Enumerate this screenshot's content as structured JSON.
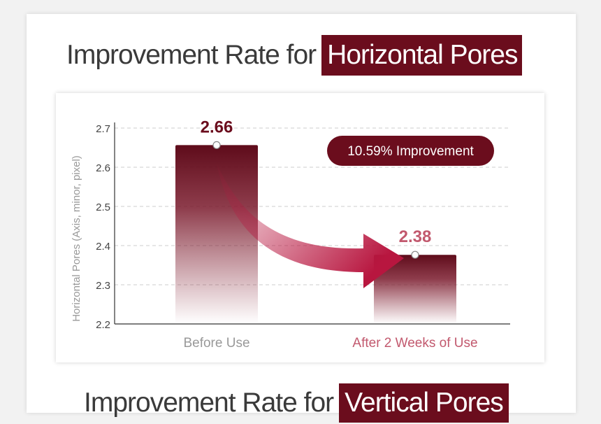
{
  "header": {
    "title_prefix": "Improvement Rate for",
    "title_highlight": "Horizontal Pores"
  },
  "next_section": {
    "title_prefix": "Improvement Rate for",
    "title_highlight": "Vertical Pores"
  },
  "colors": {
    "accent": "#6b0d1d",
    "accent_light": "#c2596e",
    "arrow": "#b8163f",
    "grid": "#cccccc",
    "axis": "#333333",
    "muted_text": "#999999"
  },
  "chart_data": {
    "type": "bar",
    "categories": [
      "Before Use",
      "After 2 Weeks of Use"
    ],
    "values": [
      2.66,
      2.38
    ],
    "value_labels": [
      "2.66",
      "2.38"
    ],
    "ylabel": "Horizontal Pores (Axis, minor, pixel)",
    "ylim": [
      2.2,
      2.7
    ],
    "yticks": [
      2.2,
      2.3,
      2.4,
      2.5,
      2.6,
      2.7
    ],
    "ytick_labels": [
      "2.2",
      "2.3",
      "2.4",
      "2.5",
      "2.6",
      "2.7"
    ],
    "grid": true,
    "annotation": "10.59% Improvement"
  }
}
